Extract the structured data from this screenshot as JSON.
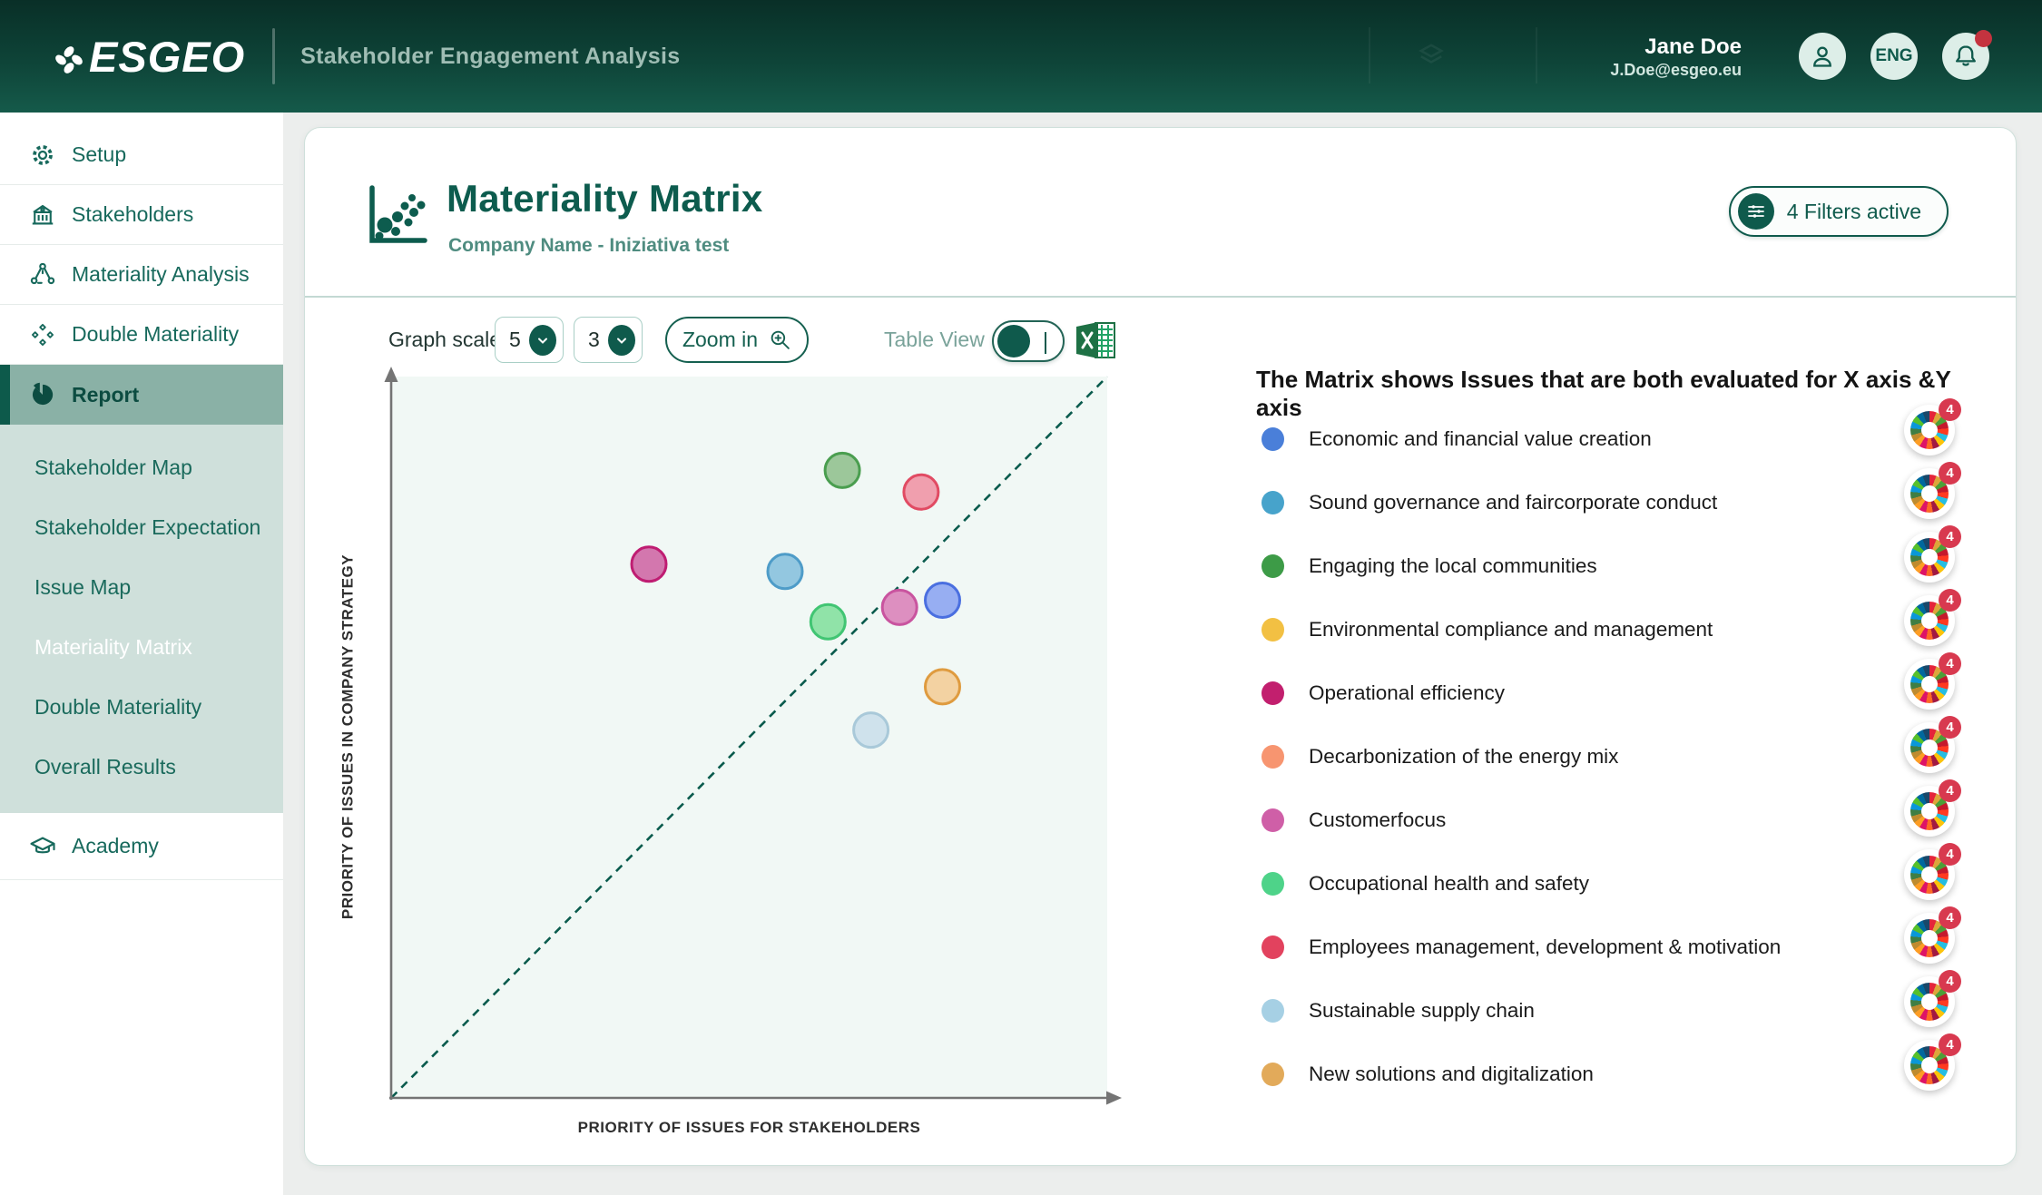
{
  "header": {
    "logo": "ESGEO",
    "app_subtitle": "Stakeholder Engagement Analysis",
    "user": {
      "name": "Jane Doe",
      "email": "J.Doe@esgeo.eu"
    },
    "language": "ENG",
    "has_notification": true
  },
  "sidebar": {
    "items": [
      {
        "label": "Setup",
        "icon": "gear-icon"
      },
      {
        "label": "Stakeholders",
        "icon": "building-icon"
      },
      {
        "label": "Materiality Analysis",
        "icon": "people-network-icon"
      },
      {
        "label": "Double Materiality",
        "icon": "diamonds-icon"
      },
      {
        "label": "Report",
        "icon": "pie-chart-icon",
        "active": true
      }
    ],
    "report_children": [
      {
        "label": "Stakeholder Map"
      },
      {
        "label": "Stakeholder Expectation"
      },
      {
        "label": "Issue Map"
      },
      {
        "label": "Materiality Matrix",
        "active": true
      },
      {
        "label": "Double Materiality"
      },
      {
        "label": "Overall Results"
      }
    ],
    "academy_label": "Academy"
  },
  "page": {
    "title": "Materiality Matrix",
    "company": "Company Name - Iniziativa test",
    "filters_button": "4 Filters active"
  },
  "toolbar": {
    "graph_scale_label": "Graph scale",
    "x_scale_value": "5",
    "y_scale_value": "3",
    "zoom_button": "Zoom in",
    "table_view_label": "Table View",
    "table_view_on": false,
    "export_icon": "excel-icon"
  },
  "chart_data": {
    "type": "scatter",
    "title": "Materiality Matrix",
    "xlabel": "PRIORITY OF ISSUES FOR STAKEHOLDERS",
    "ylabel": "PRIORITY OF ISSUES IN COMPANY STRATEGY",
    "x_range": [
      0,
      1
    ],
    "y_range": [
      0,
      1
    ],
    "grid": false,
    "diagonal_reference_line": true,
    "plot_background": "#f1f8f5",
    "points": [
      {
        "issue": "Engaging the local communities",
        "x": 0.63,
        "y": 0.87,
        "fill": "#9cc79a",
        "stroke": "#4a9e4f"
      },
      {
        "issue": "Employees management, development & motivation",
        "x": 0.74,
        "y": 0.84,
        "fill": "#f09fae",
        "stroke": "#e14b63"
      },
      {
        "issue": "Operational efficiency",
        "x": 0.36,
        "y": 0.74,
        "fill": "#d377ae",
        "stroke": "#bf1d72"
      },
      {
        "issue": "Sound governance and faircorporate conduct",
        "x": 0.55,
        "y": 0.73,
        "fill": "#93c7e0",
        "stroke": "#4e9cc8"
      },
      {
        "issue": "Economic and financial value creation",
        "x": 0.77,
        "y": 0.69,
        "fill": "#97aef2",
        "stroke": "#4a6fe0"
      },
      {
        "issue": "Customerfocus",
        "x": 0.71,
        "y": 0.68,
        "fill": "#dd8fc0",
        "stroke": "#c9549f"
      },
      {
        "issue": "Occupational health and safety",
        "x": 0.61,
        "y": 0.66,
        "fill": "#90e3a8",
        "stroke": "#41c573"
      },
      {
        "issue": "New solutions and digitalization",
        "x": 0.77,
        "y": 0.57,
        "fill": "#f3d2a2",
        "stroke": "#df9b3f"
      },
      {
        "issue": "Sustainable supply chain",
        "x": 0.67,
        "y": 0.51,
        "fill": "#cfe2ec",
        "stroke": "#a9c9d9"
      }
    ]
  },
  "legend": {
    "heading": "The Matrix shows Issues that are both evaluated for X axis &Y axis",
    "sdg_badge_count": "4",
    "items": [
      {
        "label": "Economic and financial value creation",
        "color": "#4a7fd9"
      },
      {
        "label": "Sound governance and faircorporate conduct",
        "color": "#47a3cb"
      },
      {
        "label": "Engaging the local communities",
        "color": "#3d9b47"
      },
      {
        "label": "Environmental compliance and management",
        "color": "#f2c043"
      },
      {
        "label": "Operational efficiency",
        "color": "#c21f6e"
      },
      {
        "label": "Decarbonization of the energy mix",
        "color": "#f79570"
      },
      {
        "label": "Customerfocus",
        "color": "#cf5fa7"
      },
      {
        "label": "Occupational health and safety",
        "color": "#4ed389"
      },
      {
        "label": "Employees management, development & motivation",
        "color": "#e2425e"
      },
      {
        "label": "Sustainable supply chain",
        "color": "#a6d0e4"
      },
      {
        "label": "New solutions and digitalization",
        "color": "#e2aa5a"
      }
    ]
  },
  "colors": {
    "header_gradient_top": "#092f27",
    "header_gradient_bottom": "#155a4a",
    "accent_dark_teal": "#0f5a4c",
    "sidebar_active_bg": "#8ab1a6",
    "sidebar_subpanel_bg": "#cfe0db",
    "badge_red": "#d8394f"
  }
}
